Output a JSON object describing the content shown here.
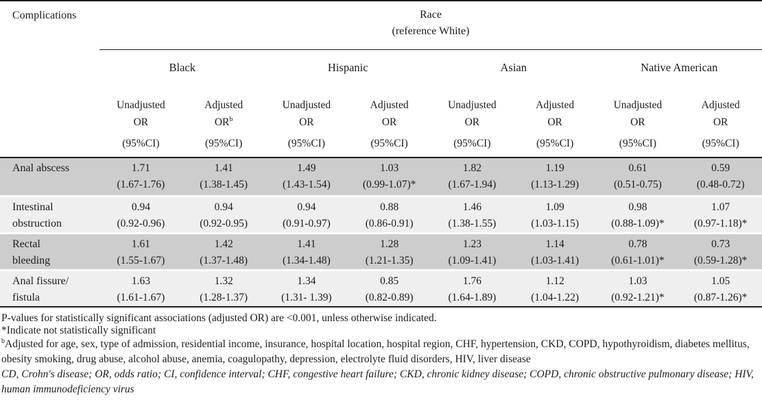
{
  "table": {
    "corner_label": "Complications",
    "race_header": {
      "line1": "Race",
      "line2": "(reference White)"
    },
    "groups": [
      {
        "label": "Black"
      },
      {
        "label": "Hispanic"
      },
      {
        "label": "Asian"
      },
      {
        "label": "Native American"
      }
    ],
    "columns": [
      {
        "line1": "Unadjusted",
        "line2": "OR",
        "sup": "",
        "line3": "(95%CI)"
      },
      {
        "line1": "Adjusted",
        "line2": "OR",
        "sup": "b",
        "line3": "(95%CI)"
      },
      {
        "line1": "Unadjusted",
        "line2": "OR",
        "sup": "",
        "line3": "(95%CI)"
      },
      {
        "line1": "Adjusted",
        "line2": "OR",
        "sup": "",
        "line3": "(95%CI)"
      },
      {
        "line1": "Unadjusted",
        "line2": "OR",
        "sup": "",
        "line3": "(95%CI)"
      },
      {
        "line1": "Adjusted",
        "line2": "OR",
        "sup": "",
        "line3": "(95%CI)"
      },
      {
        "line1": "Unadjusted",
        "line2": "OR",
        "sup": "",
        "line3": "(95%CI)"
      },
      {
        "line1": "Adjusted",
        "line2": "OR",
        "sup": "",
        "line3": "(95%CI)"
      }
    ],
    "rows": [
      {
        "label1": "Anal abscess",
        "label2": "",
        "cells": [
          {
            "or": "1.71",
            "ci": "(1.67-1.76)"
          },
          {
            "or": "1.41",
            "ci": "(1.38-1.45)"
          },
          {
            "or": "1.49",
            "ci": "(1.43-1.54)"
          },
          {
            "or": "1.03",
            "ci": "(0.99-1.07)*"
          },
          {
            "or": "1.82",
            "ci": "(1.67-1.94)"
          },
          {
            "or": "1.19",
            "ci": "(1.13-1.29)"
          },
          {
            "or": "0.61",
            "ci": "(0.51-0.75)"
          },
          {
            "or": "0.59",
            "ci": "(0.48-0.72)"
          }
        ]
      },
      {
        "label1": "Intestinal",
        "label2": "obstruction",
        "cells": [
          {
            "or": "0.94",
            "ci": "(0.92-0.96)"
          },
          {
            "or": "0.94",
            "ci": "(0.92-0.95)"
          },
          {
            "or": "0.94",
            "ci": "(0.91-0.97)"
          },
          {
            "or": "0.88",
            "ci": "(0.86-0.91)"
          },
          {
            "or": "1.46",
            "ci": "(1.38-1.55)"
          },
          {
            "or": "1.09",
            "ci": "(1.03-1.15)"
          },
          {
            "or": "0.98",
            "ci": "(0.88-1.09)*"
          },
          {
            "or": "1.07",
            "ci": "(0.97-1.18)*"
          }
        ]
      },
      {
        "label1": "Rectal",
        "label2": "bleeding",
        "cells": [
          {
            "or": "1.61",
            "ci": "(1.55-1.67)"
          },
          {
            "or": "1.42",
            "ci": "(1.37-1.48)"
          },
          {
            "or": "1.41",
            "ci": "(1.34-1.48)"
          },
          {
            "or": "1.28",
            "ci": "(1.21-1.35)"
          },
          {
            "or": "1.23",
            "ci": "(1.09-1.41)"
          },
          {
            "or": "1.14",
            "ci": "(1.03-1.41)"
          },
          {
            "or": "0.78",
            "ci": "(0.61-1.01)*"
          },
          {
            "or": "0.73",
            "ci": "(0.59-1.28)*"
          }
        ]
      },
      {
        "label1": "Anal fissure/",
        "label2": "fistula",
        "cells": [
          {
            "or": "1.63",
            "ci": "(1.61-1.67)"
          },
          {
            "or": "1.32",
            "ci": "(1.28-1.37)"
          },
          {
            "or": "1.34",
            "ci": "(1.31- 1.39)"
          },
          {
            "or": "0.85",
            "ci": "(0.82-0.89)"
          },
          {
            "or": "1.76",
            "ci": "(1.64-1.89)"
          },
          {
            "or": "1.12",
            "ci": "(1.04-1.22)"
          },
          {
            "or": "1.03",
            "ci": "(0.92-1.21)*"
          },
          {
            "or": "1.05",
            "ci": "(0.87-1.26)*"
          }
        ]
      }
    ]
  },
  "footnotes": {
    "pvalues": "P-values for statistically significant associations (adjusted OR) are <0.001, unless otherwise indicated.",
    "asterisk": "*Indicate not statistically significant",
    "adjusted_marker": "b",
    "adjusted_text": "Adjusted for age, sex, type of admission, residential income, insurance, hospital location, hospital region, CHF, hypertension, CKD, COPD, hypothyroidism, diabetes mellitus, obesity smoking, drug abuse, alcohol abuse, anemia, coagulopathy, depression, electrolyte fluid disorders, HIV, liver disease",
    "abbreviations": "CD, Crohn's disease; OR, odds ratio; CI, confidence interval; CHF, congestive heart failure; CKD, chronic kidney disease; COPD, chronic obstructive pulmonary disease; HIV, human immunodeficiency virus"
  },
  "colors": {
    "row_shade_dark": "#cdcdcd",
    "row_shade_light": "#efefef",
    "rule": "#1a1a1a",
    "text": "#1c1c1c"
  }
}
